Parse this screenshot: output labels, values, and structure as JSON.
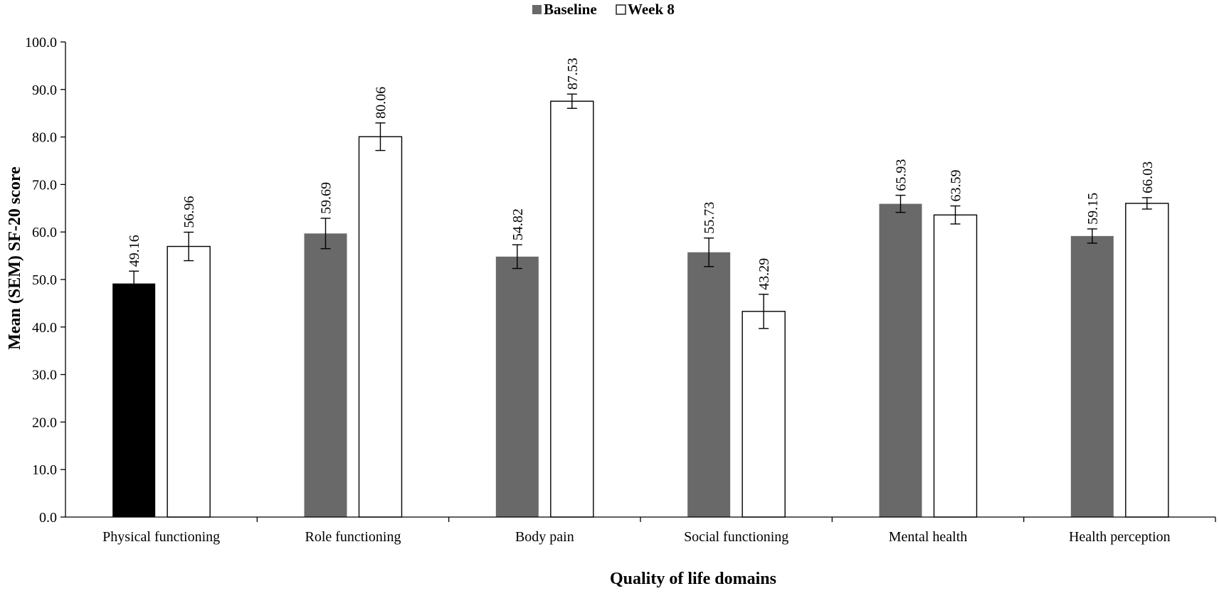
{
  "chart_data": {
    "type": "bar",
    "title": "",
    "xlabel": "Quality of life domains",
    "ylabel": "Mean (SEM) SF-20 score",
    "ylim": [
      0,
      100
    ],
    "yticks": [
      "0.0",
      "10.0",
      "20.0",
      "30.0",
      "40.0",
      "50.0",
      "60.0",
      "70.0",
      "80.0",
      "90.0",
      "100.0"
    ],
    "legend_position": "top-center",
    "grid": false,
    "categories": [
      "Physical functioning",
      "Role functioning",
      "Body pain",
      "Social functioning",
      "Mental health",
      "Health perception"
    ],
    "series": [
      {
        "name": "Baseline",
        "color": "#696969",
        "values": [
          49.16,
          59.69,
          54.82,
          55.73,
          65.93,
          59.15
        ],
        "labels": [
          "49.16",
          "59.69",
          "54.82",
          "55.73",
          "65.93",
          "59.15"
        ],
        "error": [
          2.6,
          3.2,
          2.5,
          3.0,
          1.8,
          1.5
        ]
      },
      {
        "name": "Week 8",
        "color": "#ffffff",
        "values": [
          56.96,
          80.06,
          87.53,
          43.29,
          63.59,
          66.03
        ],
        "labels": [
          "56.96",
          "80.06",
          "87.53",
          "43.29",
          "63.59",
          "66.03"
        ],
        "error": [
          3.0,
          2.9,
          1.5,
          3.6,
          1.9,
          1.2
        ]
      }
    ],
    "highlight": {
      "series": 0,
      "category": 0,
      "color": "#000000"
    }
  }
}
